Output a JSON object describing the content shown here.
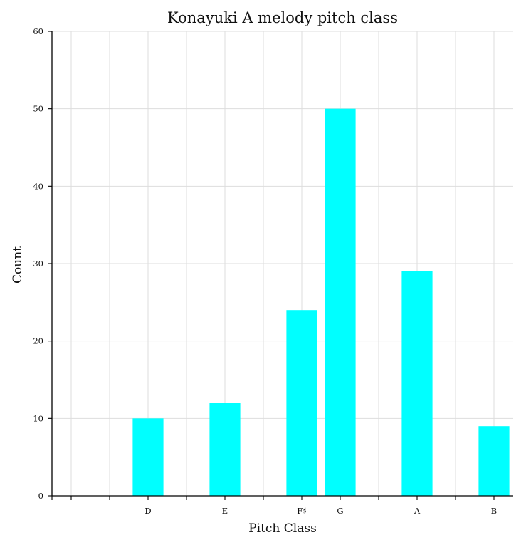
{
  "chart_data": {
    "type": "bar",
    "title": "Konayuki A melody pitch class",
    "xlabel": "Pitch Class",
    "ylabel": "Count",
    "categories": [
      "D",
      "E",
      "F♯",
      "G",
      "A",
      "B"
    ],
    "x": [
      2,
      4,
      6,
      7,
      9,
      11
    ],
    "values": [
      10,
      12,
      24,
      50,
      29,
      9
    ],
    "xlim": [
      -0.5,
      11.5
    ],
    "ylim": [
      0,
      60
    ],
    "yticks": [
      0,
      10,
      20,
      30,
      40,
      50,
      60
    ],
    "grid": true,
    "legend": "none",
    "bar_color": "#00ffff"
  }
}
